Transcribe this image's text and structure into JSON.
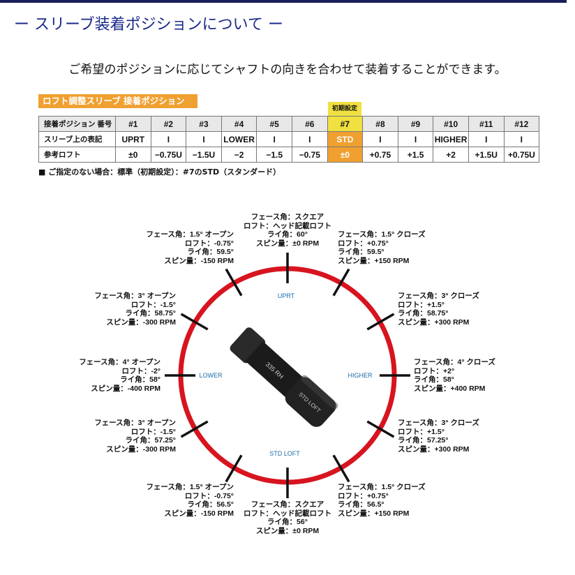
{
  "title": "ー スリーブ装着ポジションについて ー",
  "subtitle": "ご希望のポジションに応じてシャフトの向きを合わせて装着することができます。",
  "section_label": "ロフト調整スリーブ 接着ポジション",
  "initial_badge": "初期設定",
  "table": {
    "rows": [
      {
        "header": "接着ポジション 番号",
        "cells": [
          "#1",
          "#2",
          "#3",
          "#4",
          "#5",
          "#6",
          "#7",
          "#8",
          "#9",
          "#10",
          "#11",
          "#12"
        ]
      },
      {
        "header": "スリーブ上の表記",
        "cells": [
          "UPRT",
          "I",
          "I",
          "LOWER",
          "I",
          "I",
          "STD",
          "I",
          "I",
          "HIGHER",
          "I",
          "I"
        ]
      },
      {
        "header": "参考ロフト",
        "cells": [
          "±0",
          "−0.75U",
          "−1.5U",
          "−2",
          "−1.5",
          "−0.75",
          "±0",
          "+0.75",
          "+1.5",
          "+2",
          "+1.5U",
          "+0.75U"
        ]
      }
    ],
    "highlight_column": "#7"
  },
  "note": "■ ご指定のない場合：標準（初期設定）：#7のSTD（スタンダード）",
  "colors": {
    "ring": "#d7141f",
    "accent_orange": "#f0a030",
    "accent_yellow": "#f0e040",
    "title_blue": "#1a2a8a",
    "inner_label": "#1a6aa8"
  },
  "diagram": {
    "inner_labels": {
      "top": "UPRT",
      "left": "LOWER",
      "right": "HIGHER",
      "bottom": "STD LOFT"
    },
    "sleeve_text": [
      "335 RH",
      "STD LOFT"
    ],
    "positions": [
      {
        "lines": [
          "フェース角：スクエア",
          "ロフト：ヘッド記載ロフト",
          "ライ角：60°",
          "スピン量：±0 RPM"
        ]
      },
      {
        "lines": [
          "フェース角：1.5° クローズ",
          "ロフト：+0.75°",
          "ライ角：59.5°",
          "スピン量：+150 RPM"
        ]
      },
      {
        "lines": [
          "フェース角：3° クローズ",
          "ロフト：+1.5°",
          "ライ角：58.75°",
          "スピン量：+300 RPM"
        ]
      },
      {
        "lines": [
          "フェース角：4° クローズ",
          "ロフト：+2°",
          "ライ角：58°",
          "スピン量：+400 RPM"
        ]
      },
      {
        "lines": [
          "フェース角：3° クローズ",
          "ロフト：+1.5°",
          "ライ角：57.25°",
          "スピン量：+300 RPM"
        ]
      },
      {
        "lines": [
          "フェース角：1.5° クローズ",
          "ロフト：+0.75°",
          "ライ角：56.5°",
          "スピン量：+150 RPM"
        ]
      },
      {
        "lines": [
          "フェース角：スクエア",
          "ロフト：ヘッド記載ロフト",
          "ライ角：56°",
          "スピン量：±0 RPM"
        ]
      },
      {
        "lines": [
          "フェース角：1.5° オープン",
          "ロフト：-0.75°",
          "ライ角：56.5°",
          "スピン量：-150 RPM"
        ]
      },
      {
        "lines": [
          "フェース角：3° オープン",
          "ロフト：-1.5°",
          "ライ角：57.25°",
          "スピン量：-300 RPM"
        ]
      },
      {
        "lines": [
          "フェース角：4° オープン",
          "ロフト：-2°",
          "ライ角：58°",
          "スピン量：-400 RPM"
        ]
      },
      {
        "lines": [
          "フェース角：3° オープン",
          "ロフト：-1.5°",
          "ライ角：58.75°",
          "スピン量：-300 RPM"
        ]
      },
      {
        "lines": [
          "フェース角：1.5° オープン",
          "ロフト：-0.75°",
          "ライ角：59.5°",
          "スピン量：-150 RPM"
        ]
      }
    ]
  }
}
